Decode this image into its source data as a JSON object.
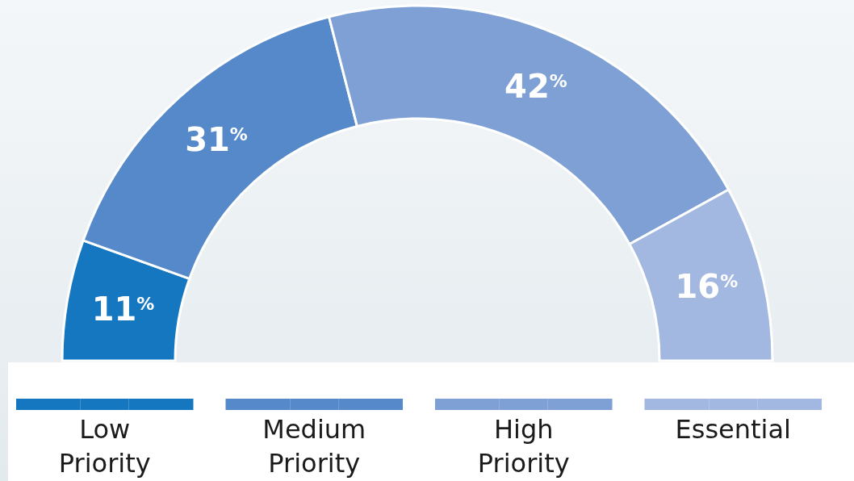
{
  "chart_data": {
    "type": "donut",
    "categories": [
      "Low Priority",
      "Medium Priority",
      "High Priority",
      "Essential"
    ],
    "values": [
      11,
      31,
      42,
      16
    ],
    "colors": [
      "#1577c0",
      "#5689c9",
      "#7ea0d5",
      "#a3b8e0"
    ],
    "value_labels": [
      "11$^{%}$",
      "31$^{%}$",
      "42$^{%}$",
      "16$^{%}$"
    ],
    "legend": "bottom"
  }
}
